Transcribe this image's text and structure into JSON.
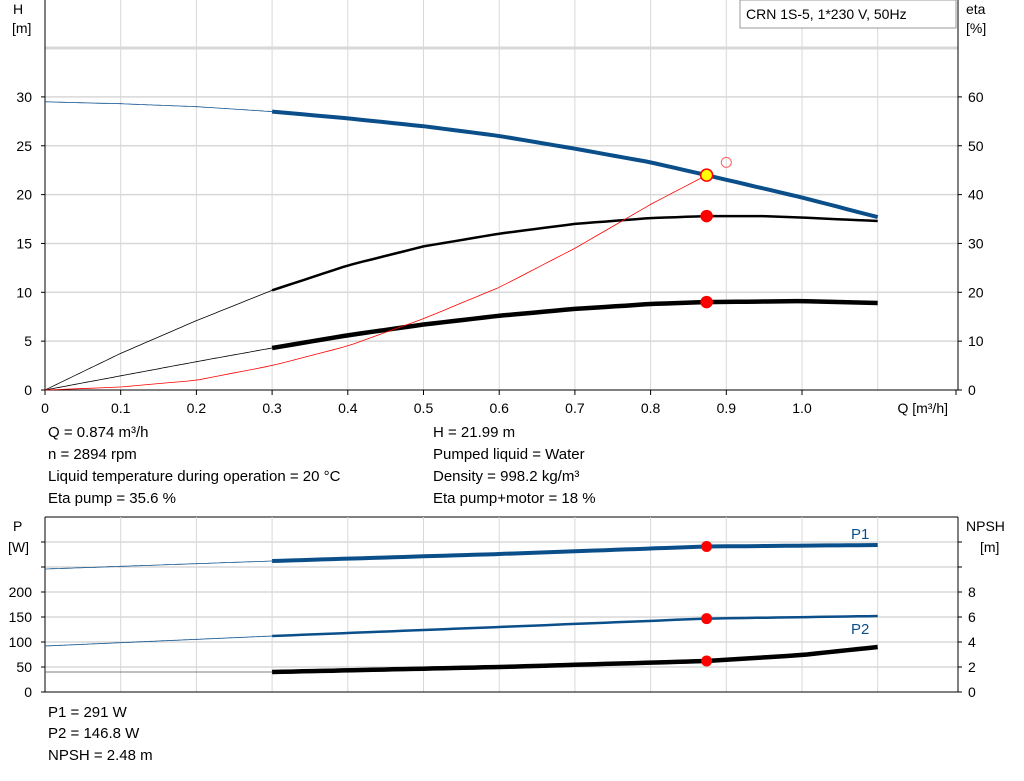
{
  "chart_data": [
    {
      "type": "line",
      "title": "CRN 1S-5, 1*230 V, 50Hz",
      "xlabel": "Q [m³/h]",
      "ylabel_left": [
        "H",
        "[m]"
      ],
      "ylabel_right": [
        "eta",
        "[%]"
      ],
      "xlim": [
        0,
        1.1
      ],
      "ylim_left": [
        0,
        35
      ],
      "ylim_right": [
        0,
        70
      ],
      "x_ticks": [
        "0",
        "0.1",
        "0.2",
        "0.3",
        "0.4",
        "0.5",
        "0.6",
        "0.7",
        "0.8",
        "0.9",
        "1.0"
      ],
      "y_ticks_left": [
        "0",
        "5",
        "10",
        "15",
        "20",
        "25",
        "30"
      ],
      "y_ticks_right": [
        "0",
        "10",
        "20",
        "30",
        "40",
        "50",
        "60"
      ],
      "grid": true,
      "series": [
        {
          "key": "H",
          "axis": "left",
          "color": "#0b4f8a",
          "x": [
            0,
            0.1,
            0.2,
            0.3,
            0.4,
            0.5,
            0.6,
            0.7,
            0.8,
            0.874,
            1.0,
            1.1
          ],
          "y": [
            29.5,
            29.3,
            29.0,
            28.5,
            27.8,
            27.0,
            26.0,
            24.7,
            23.3,
            21.99,
            19.7,
            17.7
          ]
        },
        {
          "key": "eta_pump",
          "axis": "right",
          "color": "#000000",
          "x": [
            0,
            0.1,
            0.2,
            0.3,
            0.4,
            0.5,
            0.6,
            0.7,
            0.8,
            0.874,
            0.95,
            1.0,
            1.1
          ],
          "y": [
            0,
            7.5,
            14.2,
            20.4,
            25.5,
            29.4,
            32.0,
            34.0,
            35.2,
            35.6,
            35.6,
            35.3,
            34.6
          ]
        },
        {
          "key": "eta_pump_motor",
          "axis": "right",
          "color": "#000000",
          "x": [
            0,
            0.1,
            0.2,
            0.3,
            0.4,
            0.5,
            0.6,
            0.7,
            0.8,
            0.874,
            1.0,
            1.1
          ],
          "y": [
            0,
            2.9,
            5.8,
            8.6,
            11.2,
            13.4,
            15.2,
            16.6,
            17.6,
            18.0,
            18.2,
            17.8
          ]
        },
        {
          "key": "system",
          "axis": "left",
          "color": "#ff0000",
          "x": [
            0,
            0.1,
            0.2,
            0.3,
            0.4,
            0.5,
            0.6,
            0.7,
            0.8,
            0.874
          ],
          "y": [
            0,
            0.3,
            1.0,
            2.5,
            4.5,
            7.3,
            10.5,
            14.5,
            19.0,
            21.99
          ]
        }
      ],
      "duty_points": [
        {
          "axis": "left",
          "x": 0.874,
          "y": 21.99,
          "fill": "#ffff00"
        },
        {
          "axis": "right",
          "x": 0.874,
          "y": 35.6,
          "fill": "#ff0000"
        },
        {
          "axis": "right",
          "x": 0.874,
          "y": 18,
          "fill": "#ff0000"
        }
      ],
      "hollow_point": {
        "axis": "left",
        "x": 0.9,
        "y": 23.3,
        "color": "#ff6060"
      }
    },
    {
      "type": "line",
      "ylabel_left": [
        "P",
        "[W]"
      ],
      "ylabel_right": [
        "NPSH",
        "[m]"
      ],
      "xlim": [
        0,
        1.1
      ],
      "ylim_left": [
        0,
        325
      ],
      "ylim_right": [
        0,
        13
      ],
      "y_ticks_left": [
        "0",
        "50",
        "100",
        "150",
        "200"
      ],
      "y_ticks_right": [
        "0",
        "2",
        "4",
        "6",
        "8"
      ],
      "grid": true,
      "series": [
        {
          "key": "P1",
          "name": "P1",
          "axis": "left",
          "color": "#0b4f8a",
          "x": [
            0,
            0.3,
            0.6,
            0.874,
            1.1
          ],
          "y": [
            246,
            262,
            276,
            291,
            294
          ]
        },
        {
          "key": "P2",
          "name": "P2",
          "axis": "left",
          "color": "#0b4f8a",
          "x": [
            0,
            0.3,
            0.6,
            0.874,
            1.1
          ],
          "y": [
            92,
            112,
            130,
            146.8,
            152
          ]
        },
        {
          "key": "NPSH",
          "axis": "right",
          "color": "#000000",
          "x": [
            0,
            0.3,
            0.6,
            0.874,
            1.0,
            1.1
          ],
          "y": [
            1.6,
            1.6,
            2.0,
            2.48,
            2.96,
            3.6
          ]
        }
      ],
      "duty_points": [
        {
          "axis": "left",
          "x": 0.874,
          "y": 291
        },
        {
          "axis": "left",
          "x": 0.874,
          "y": 146.8
        },
        {
          "axis": "right",
          "x": 0.874,
          "y": 2.48
        }
      ]
    }
  ],
  "info_top": {
    "q": "Q = 0.874 m³/h",
    "n": "n = 2894 rpm",
    "temp": "Liquid temperature during operation = 20 °C",
    "eta_pump": "Eta pump = 35.6 %",
    "h": "H = 21.99 m",
    "liquid": "Pumped liquid = Water",
    "density": "Density = 998.2 kg/m³",
    "eta_pm": "Eta pump+motor = 18 %"
  },
  "info_bottom": {
    "p1": "P1 = 291 W",
    "p2": "P2 = 146.8 W",
    "npsh": "NPSH = 2.48 m"
  }
}
